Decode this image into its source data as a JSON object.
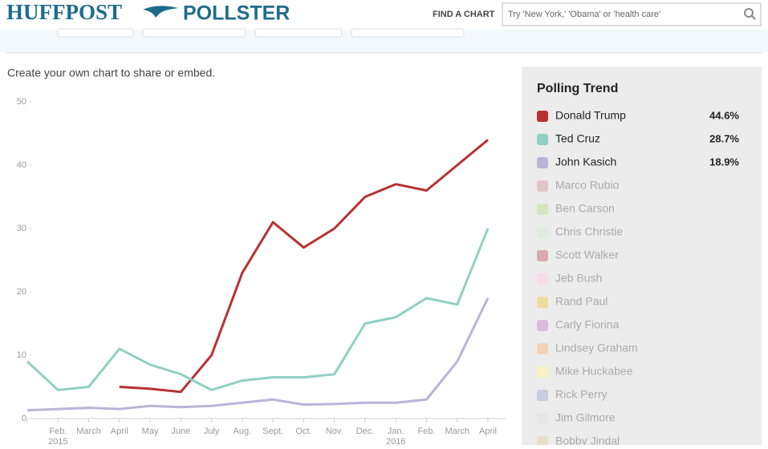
{
  "header": {
    "brand": "HUFFPOST",
    "product": "POLLSTER",
    "find_label": "FIND A CHART",
    "search_placeholder": "Try 'New York,' 'Obama' or 'health care'"
  },
  "subtitle": "Create your own chart to share or embed.",
  "chart_data": {
    "type": "line",
    "categories": [
      null,
      "Feb. 2015",
      "March",
      "April",
      "May",
      "June",
      "July",
      "Aug.",
      "Sept.",
      "Oct.",
      "Nov.",
      "Dec.",
      "Jan. 2016",
      "Feb.",
      "March",
      "April"
    ],
    "series": [
      {
        "name": "Donald Trump",
        "color": "#b83232",
        "values": [
          null,
          null,
          null,
          5,
          4.7,
          4.2,
          10,
          23,
          31,
          27,
          30,
          35,
          37,
          36,
          40,
          44
        ]
      },
      {
        "name": "Ted Cruz",
        "color": "#8fd0c3",
        "values": [
          9,
          4.5,
          5,
          11,
          8.5,
          7,
          4.5,
          6,
          6.5,
          6.5,
          7,
          15,
          16,
          19,
          18,
          30
        ]
      },
      {
        "name": "John Kasich",
        "color": "#bbb3d8",
        "values": [
          1.3,
          1.5,
          1.7,
          1.5,
          2,
          1.8,
          2,
          2.5,
          3,
          2.2,
          2.3,
          2.5,
          2.5,
          3,
          9,
          19
        ]
      }
    ],
    "ylim": [
      0,
      50
    ],
    "yticks": [
      0,
      10,
      20,
      30,
      40,
      50
    ]
  },
  "sidebar": {
    "title": "Polling Trend",
    "items": [
      {
        "name": "Donald Trump",
        "color": "#b83232",
        "value": "44.6%"
      },
      {
        "name": "Ted Cruz",
        "color": "#8fd0c3",
        "value": "28.7%"
      },
      {
        "name": "John Kasich",
        "color": "#bbb3d8",
        "value": "18.9%"
      },
      {
        "name": "Marco Rubio",
        "color": "#e3c4c8"
      },
      {
        "name": "Ben Carson",
        "color": "#d4e6c0"
      },
      {
        "name": "Chris Christie",
        "color": "#dfeddf"
      },
      {
        "name": "Scott Walker",
        "color": "#d9a9ad"
      },
      {
        "name": "Jeb Bush",
        "color": "#f6dde8"
      },
      {
        "name": "Rand Paul",
        "color": "#eedc9a"
      },
      {
        "name": "Carly Fiorina",
        "color": "#dcbadd"
      },
      {
        "name": "Lindsey Graham",
        "color": "#f3d3b8"
      },
      {
        "name": "Mike Huckabee",
        "color": "#faf2c2"
      },
      {
        "name": "Rick Perry",
        "color": "#c9cbe0"
      },
      {
        "name": "Jim Gilmore",
        "color": "#e6e6e6"
      },
      {
        "name": "Bobby Jindal",
        "color": "#e8dccb"
      }
    ]
  }
}
